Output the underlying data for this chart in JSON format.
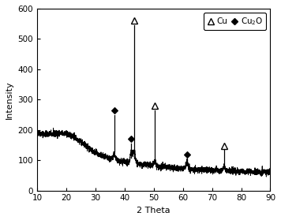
{
  "xlim": [
    10,
    90
  ],
  "ylim": [
    0,
    600
  ],
  "xlabel": "2 Theta",
  "ylabel": "Intensity",
  "xticks": [
    10,
    20,
    30,
    40,
    50,
    60,
    70,
    80,
    90
  ],
  "yticks": [
    0,
    100,
    200,
    300,
    400,
    500,
    600
  ],
  "cu_peaks": [
    {
      "two_theta": 43.3,
      "marker_y": 560,
      "line_top": 545,
      "spectrum_y": 105
    },
    {
      "two_theta": 50.4,
      "marker_y": 280,
      "line_top": 265,
      "spectrum_y": 90
    },
    {
      "two_theta": 74.1,
      "marker_y": 148,
      "line_top": 134,
      "spectrum_y": 82
    }
  ],
  "cu2o_peaks": [
    {
      "two_theta": 36.4,
      "marker_y": 265,
      "line_top": 250,
      "spectrum_y": 128
    },
    {
      "two_theta": 42.3,
      "marker_y": 170,
      "line_top": 155,
      "spectrum_y": 108
    },
    {
      "two_theta": 61.4,
      "marker_y": 118,
      "line_top": 103,
      "spectrum_y": 90
    }
  ],
  "background_color": "#ffffff",
  "line_color": "#000000",
  "noise_seed": 42,
  "noise_std": 5,
  "figsize": [
    3.56,
    2.79
  ],
  "dpi": 100
}
